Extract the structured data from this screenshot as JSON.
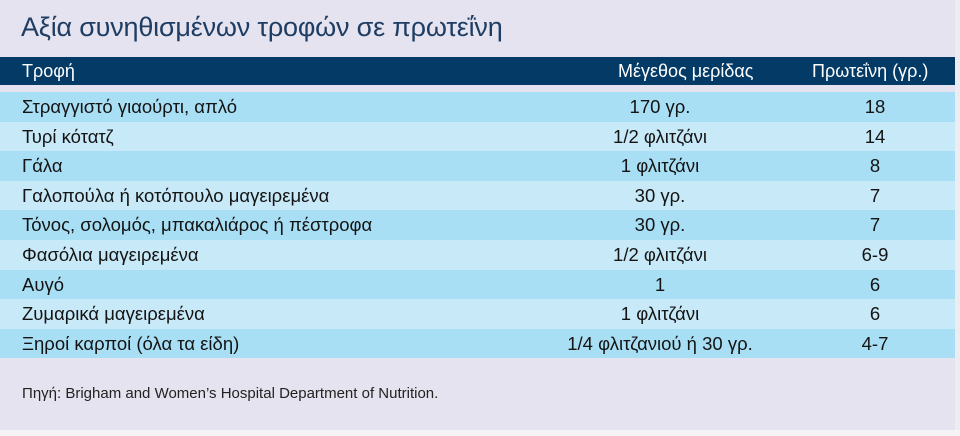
{
  "title": "Αξία συνηθισμένων τροφών σε πρωτεΐνη",
  "table": {
    "headers": {
      "food": "Τροφή",
      "serving": "Μέγεθος μερίδας",
      "protein": "Πρωτεΐνη (γρ.)"
    },
    "rows": [
      {
        "food": "Στραγγιστό γιαούρτι, απλό",
        "serving": "170 γρ.",
        "protein": "18"
      },
      {
        "food": "Τυρί κότατζ",
        "serving": "1/2 φλιτζάνι",
        "protein": "14"
      },
      {
        "food": "Γάλα",
        "serving": "1 φλιτζάνι",
        "protein": "8"
      },
      {
        "food": "Γαλοπούλα ή κοτόπουλο μαγειρεμένα",
        "serving": "30 γρ.",
        "protein": "7"
      },
      {
        "food": "Τόνος, σολομός, μπακαλιάρος ή πέστροφα",
        "serving": "30 γρ.",
        "protein": "7"
      },
      {
        "food": "Φασόλια μαγειρεμένα",
        "serving": "1/2 φλιτζάνι",
        "protein": "6-9"
      },
      {
        "food": "Αυγό",
        "serving": "1",
        "protein": "6"
      },
      {
        "food": "Ζυμαρικά μαγειρεμένα",
        "serving": "1 φλιτζάνι",
        "protein": "6"
      },
      {
        "food": "Ξηροί καρποί (όλα τα είδη)",
        "serving": "1/4 φλιτζανιού ή 30 γρ.",
        "protein": "4-7"
      }
    ]
  },
  "source": "Πηγή: Brigham and Women’s Hospital Department of Nutrition.",
  "colors": {
    "background": "#e4e3ef",
    "title": "#1f3d63",
    "header_bg": "#033a66",
    "row_dark": "#a9dff5",
    "row_light": "#c8e9f8"
  }
}
